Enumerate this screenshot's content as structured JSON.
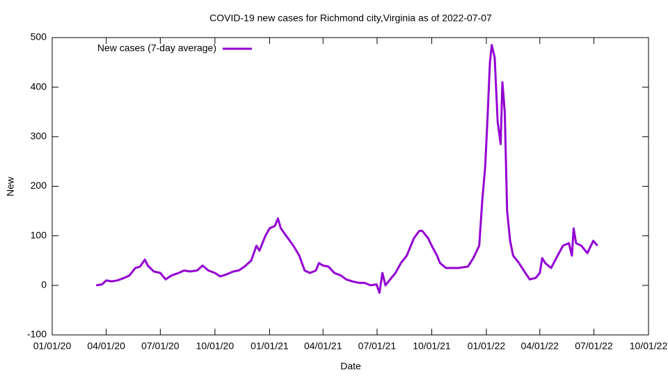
{
  "chart_data": {
    "type": "line",
    "title": "COVID-19 new cases for Richmond city,Virginia as of 2022-07-07",
    "x_label": "Date",
    "y_label": "New",
    "xlim": [
      "01/01/20",
      "10/01/22"
    ],
    "xticks": [
      "01/01/20",
      "04/01/20",
      "07/01/20",
      "10/01/20",
      "01/01/21",
      "04/01/21",
      "07/01/21",
      "10/01/21",
      "01/01/22",
      "04/01/22",
      "07/01/22",
      "10/01/22"
    ],
    "ylim": [
      -100,
      500
    ],
    "yticks": [
      -100,
      0,
      100,
      200,
      300,
      400,
      500
    ],
    "legend": "top-left",
    "x": [
      "03/15/20",
      "03/25/20",
      "04/01/20",
      "04/10/20",
      "04/20/20",
      "05/01/20",
      "05/10/20",
      "05/20/20",
      "05/28/20",
      "06/05/20",
      "06/10/20",
      "06/20/20",
      "07/01/20",
      "07/10/20",
      "07/20/20",
      "08/01/20",
      "08/10/20",
      "08/20/20",
      "09/01/20",
      "09/10/20",
      "09/20/20",
      "10/01/20",
      "10/10/20",
      "10/20/20",
      "11/01/20",
      "11/10/20",
      "11/20/20",
      "12/01/20",
      "12/10/20",
      "12/15/20",
      "12/25/20",
      "01/01/21",
      "01/10/21",
      "01/15/21",
      "01/20/21",
      "02/01/21",
      "02/10/21",
      "02/20/21",
      "03/01/21",
      "03/10/21",
      "03/20/21",
      "03/25/21",
      "04/01/21",
      "04/10/21",
      "04/20/21",
      "05/01/21",
      "05/10/21",
      "05/20/21",
      "06/01/21",
      "06/10/21",
      "06/20/21",
      "06/30/21",
      "07/05/21",
      "07/10/21",
      "07/15/21",
      "07/25/21",
      "08/01/21",
      "08/10/21",
      "08/20/21",
      "09/01/21",
      "09/10/21",
      "09/15/21",
      "09/25/21",
      "10/01/21",
      "10/10/21",
      "10/15/21",
      "10/25/21",
      "11/01/21",
      "11/15/21",
      "12/01/21",
      "12/10/21",
      "12/20/21",
      "12/25/21",
      "12/30/21",
      "01/03/22",
      "01/07/22",
      "01/10/22",
      "01/15/22",
      "01/20/22",
      "01/25/22",
      "01/28/22",
      "02/01/22",
      "02/05/22",
      "02/10/22",
      "02/15/22",
      "02/25/22",
      "03/05/22",
      "03/15/22",
      "03/25/22",
      "04/01/22",
      "04/05/22",
      "04/10/22",
      "04/20/22",
      "05/01/22",
      "05/10/22",
      "05/20/22",
      "05/25/22",
      "05/28/22",
      "06/01/22",
      "06/10/22",
      "06/20/22",
      "06/30/22",
      "07/07/22"
    ],
    "series": [
      {
        "name": "New cases (7-day average)",
        "color": "#9400d3",
        "values": [
          0,
          2,
          10,
          8,
          10,
          15,
          20,
          35,
          38,
          52,
          40,
          28,
          25,
          12,
          20,
          25,
          30,
          28,
          30,
          40,
          30,
          25,
          18,
          22,
          28,
          30,
          38,
          50,
          80,
          70,
          100,
          115,
          120,
          135,
          115,
          95,
          80,
          60,
          30,
          25,
          30,
          45,
          40,
          38,
          25,
          20,
          12,
          8,
          5,
          5,
          0,
          2,
          -15,
          25,
          0,
          15,
          25,
          45,
          60,
          95,
          110,
          110,
          95,
          80,
          60,
          45,
          35,
          35,
          35,
          38,
          55,
          80,
          170,
          240,
          340,
          450,
          485,
          460,
          330,
          285,
          410,
          350,
          150,
          90,
          60,
          45,
          30,
          12,
          15,
          25,
          55,
          45,
          35,
          60,
          80,
          85,
          60,
          115,
          85,
          80,
          65,
          90,
          80
        ]
      }
    ]
  }
}
